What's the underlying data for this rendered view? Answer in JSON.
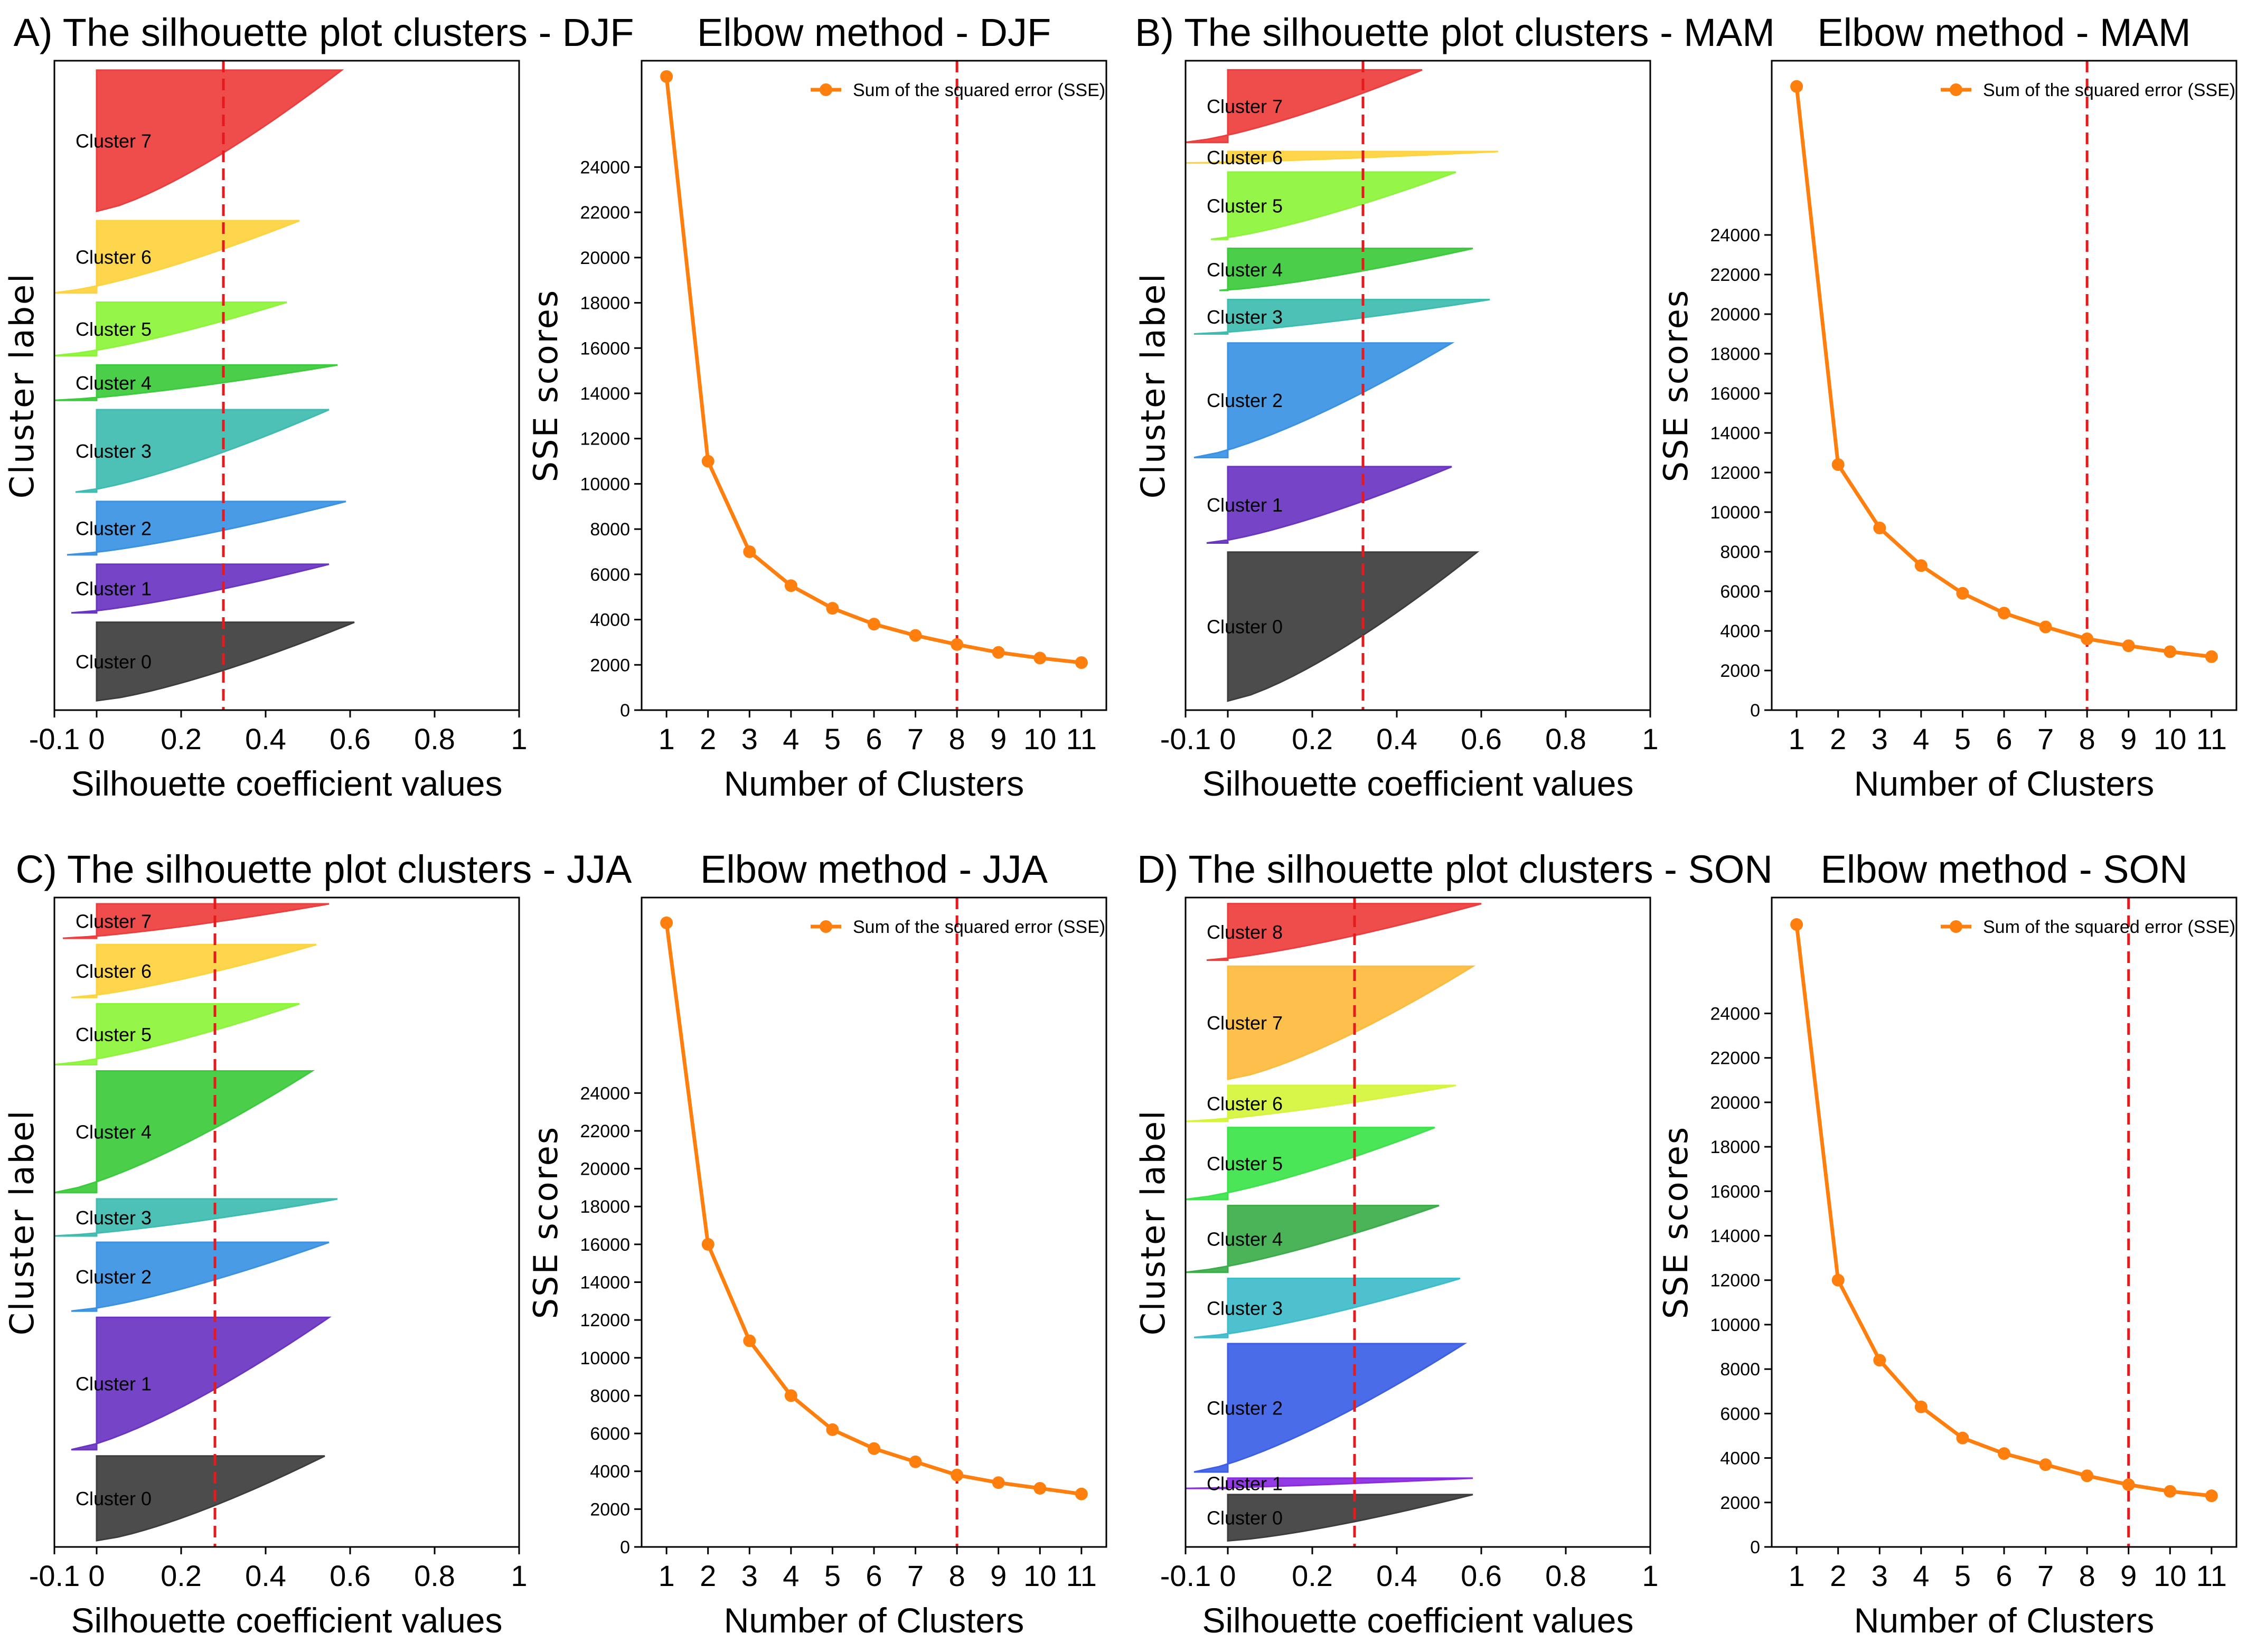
{
  "chart_data": [
    {
      "type": "area",
      "kind": "silhouette",
      "title": "A) The silhouette plot clusters - DJF",
      "xlabel": "Silhouette coefficient values",
      "ylabel": "Cluster label",
      "xlim": [
        -0.1,
        1
      ],
      "xticks": [
        "-0.1",
        "0",
        "0.2",
        "0.4",
        "0.6",
        "0.8",
        "1"
      ],
      "xtick_values": [
        -0.1,
        0,
        0.2,
        0.4,
        0.6,
        0.8,
        1
      ],
      "avg_silhouette": 0.3,
      "clusters": [
        {
          "label": "Cluster 0",
          "size": 1.0,
          "max": 0.61,
          "min": 0.0,
          "color": "#3d3d3d"
        },
        {
          "label": "Cluster 1",
          "size": 0.62,
          "max": 0.55,
          "min": -0.06,
          "color": "#6a35c2"
        },
        {
          "label": "Cluster 2",
          "size": 0.68,
          "max": 0.59,
          "min": -0.07,
          "color": "#3a92e4"
        },
        {
          "label": "Cluster 3",
          "size": 1.05,
          "max": 0.55,
          "min": -0.05,
          "color": "#3fbcb0"
        },
        {
          "label": "Cluster 4",
          "size": 0.45,
          "max": 0.57,
          "min": -0.1,
          "color": "#3ccb3c"
        },
        {
          "label": "Cluster 5",
          "size": 0.68,
          "max": 0.45,
          "min": -0.1,
          "color": "#8cf53a"
        },
        {
          "label": "Cluster 6",
          "size": 0.92,
          "max": 0.48,
          "min": -0.1,
          "color": "#fdd33e"
        },
        {
          "label": "Cluster 7",
          "size": 1.8,
          "max": 0.58,
          "min": 0.0,
          "color": "#ee3d3d"
        }
      ]
    },
    {
      "type": "line",
      "kind": "elbow",
      "title": "Elbow method - DJF",
      "xlabel": "Number of Clusters",
      "ylabel": "SSE scores",
      "legend": "Sum of the squared error (SSE)",
      "x": [
        1,
        2,
        3,
        4,
        5,
        6,
        7,
        8,
        9,
        10,
        11
      ],
      "y": [
        28000,
        11000,
        7000,
        5500,
        4500,
        3800,
        3300,
        2900,
        2550,
        2300,
        2100
      ],
      "ylim": [
        0,
        28000
      ],
      "yticks": [
        0,
        2000,
        4000,
        6000,
        8000,
        10000,
        12000,
        14000,
        16000,
        18000,
        20000,
        22000,
        24000
      ],
      "optimal_k": 8,
      "color": "#ff7f0e"
    },
    {
      "type": "area",
      "kind": "silhouette",
      "title": "B) The silhouette plot clusters - MAM",
      "xlabel": "Silhouette coefficient values",
      "ylabel": "Cluster label",
      "xlim": [
        -0.1,
        1
      ],
      "xticks": [
        "-0.1",
        "0",
        "0.2",
        "0.4",
        "0.6",
        "0.8",
        "1"
      ],
      "xtick_values": [
        -0.1,
        0,
        0.2,
        0.4,
        0.6,
        0.8,
        1
      ],
      "avg_silhouette": 0.32,
      "clusters": [
        {
          "label": "Cluster 0",
          "size": 1.95,
          "max": 0.59,
          "min": 0.0,
          "color": "#3d3d3d"
        },
        {
          "label": "Cluster 1",
          "size": 1.0,
          "max": 0.53,
          "min": -0.05,
          "color": "#6a35c2"
        },
        {
          "label": "Cluster 2",
          "size": 1.5,
          "max": 0.53,
          "min": -0.08,
          "color": "#3a92e4"
        },
        {
          "label": "Cluster 3",
          "size": 0.45,
          "max": 0.62,
          "min": -0.08,
          "color": "#3fbcb0"
        },
        {
          "label": "Cluster 4",
          "size": 0.55,
          "max": 0.58,
          "min": -0.02,
          "color": "#3ccb3c"
        },
        {
          "label": "Cluster 5",
          "size": 0.88,
          "max": 0.54,
          "min": -0.04,
          "color": "#8cf53a"
        },
        {
          "label": "Cluster 6",
          "size": 0.15,
          "max": 0.64,
          "min": -0.1,
          "color": "#fdd33e"
        },
        {
          "label": "Cluster 7",
          "size": 0.95,
          "max": 0.46,
          "min": -0.1,
          "color": "#ee3d3d"
        }
      ]
    },
    {
      "type": "line",
      "kind": "elbow",
      "title": "Elbow method - MAM",
      "xlabel": "Number of Clusters",
      "ylabel": "SSE scores",
      "legend": "Sum of the squared error (SSE)",
      "x": [
        1,
        2,
        3,
        4,
        5,
        6,
        7,
        8,
        9,
        10,
        11
      ],
      "y": [
        31500,
        12400,
        9200,
        7300,
        5900,
        4900,
        4200,
        3600,
        3250,
        2950,
        2700
      ],
      "ylim": [
        0,
        32000
      ],
      "yticks": [
        0,
        2000,
        4000,
        6000,
        8000,
        10000,
        12000,
        14000,
        16000,
        18000,
        20000,
        22000,
        24000
      ],
      "optimal_k": 8,
      "color": "#ff7f0e"
    },
    {
      "type": "area",
      "kind": "silhouette",
      "title": "C) The silhouette plot clusters - JJA",
      "xlabel": "Silhouette coefficient values",
      "ylabel": "Cluster label",
      "xlim": [
        -0.1,
        1
      ],
      "xticks": [
        "-0.1",
        "0",
        "0.2",
        "0.4",
        "0.6",
        "0.8",
        "1"
      ],
      "xtick_values": [
        -0.1,
        0,
        0.2,
        0.4,
        0.6,
        0.8,
        1
      ],
      "avg_silhouette": 0.28,
      "clusters": [
        {
          "label": "Cluster 0",
          "size": 1.6,
          "max": 0.54,
          "min": 0.0,
          "color": "#3d3d3d"
        },
        {
          "label": "Cluster 1",
          "size": 2.5,
          "max": 0.55,
          "min": -0.06,
          "color": "#6a35c2"
        },
        {
          "label": "Cluster 2",
          "size": 1.3,
          "max": 0.55,
          "min": -0.06,
          "color": "#3a92e4"
        },
        {
          "label": "Cluster 3",
          "size": 0.7,
          "max": 0.57,
          "min": -0.1,
          "color": "#3fbcb0"
        },
        {
          "label": "Cluster 4",
          "size": 2.3,
          "max": 0.51,
          "min": -0.1,
          "color": "#3ccb3c"
        },
        {
          "label": "Cluster 5",
          "size": 1.15,
          "max": 0.48,
          "min": -0.1,
          "color": "#8cf53a"
        },
        {
          "label": "Cluster 6",
          "size": 1.0,
          "max": 0.52,
          "min": -0.06,
          "color": "#fdd33e"
        },
        {
          "label": "Cluster 7",
          "size": 0.65,
          "max": 0.55,
          "min": -0.08,
          "color": "#ee3d3d"
        }
      ]
    },
    {
      "type": "line",
      "kind": "elbow",
      "title": "Elbow method - JJA",
      "xlabel": "Number of Clusters",
      "ylabel": "SSE scores",
      "legend": "Sum of the squared error (SSE)",
      "x": [
        1,
        2,
        3,
        4,
        5,
        6,
        7,
        8,
        9,
        10,
        11
      ],
      "y": [
        33000,
        16000,
        10900,
        8000,
        6200,
        5200,
        4500,
        3800,
        3400,
        3100,
        2800
      ],
      "ylim": [
        0,
        33500
      ],
      "yticks": [
        0,
        2000,
        4000,
        6000,
        8000,
        10000,
        12000,
        14000,
        16000,
        18000,
        20000,
        22000,
        24000
      ],
      "optimal_k": 8,
      "color": "#ff7f0e"
    },
    {
      "type": "area",
      "kind": "silhouette",
      "title": "D) The silhouette plot clusters - SON",
      "xlabel": "Silhouette coefficient values",
      "ylabel": "Cluster label",
      "xlim": [
        -0.1,
        1
      ],
      "xticks": [
        "-0.1",
        "0",
        "0.2",
        "0.4",
        "0.6",
        "0.8",
        "1"
      ],
      "xtick_values": [
        -0.1,
        0,
        0.2,
        0.4,
        0.6,
        0.8,
        1
      ],
      "avg_silhouette": 0.3,
      "clusters": [
        {
          "label": "Cluster 0",
          "size": 0.9,
          "max": 0.58,
          "min": 0.0,
          "color": "#3d3d3d"
        },
        {
          "label": "Cluster 1",
          "size": 0.2,
          "max": 0.58,
          "min": -0.1,
          "color": "#8a2be2"
        },
        {
          "label": "Cluster 2",
          "size": 2.5,
          "max": 0.56,
          "min": -0.08,
          "color": "#3c5fe6"
        },
        {
          "label": "Cluster 3",
          "size": 1.15,
          "max": 0.55,
          "min": -0.08,
          "color": "#3fbccb"
        },
        {
          "label": "Cluster 4",
          "size": 1.3,
          "max": 0.5,
          "min": -0.1,
          "color": "#3cad4a"
        },
        {
          "label": "Cluster 5",
          "size": 1.4,
          "max": 0.49,
          "min": -0.1,
          "color": "#3ce44a"
        },
        {
          "label": "Cluster 6",
          "size": 0.7,
          "max": 0.54,
          "min": -0.1,
          "color": "#d4f53a"
        },
        {
          "label": "Cluster 7",
          "size": 2.2,
          "max": 0.58,
          "min": 0.0,
          "color": "#fdbb3e"
        },
        {
          "label": "Cluster 8",
          "size": 1.1,
          "max": 0.6,
          "min": -0.05,
          "color": "#ee3d3d"
        }
      ]
    },
    {
      "type": "line",
      "kind": "elbow",
      "title": "Elbow method - SON",
      "xlabel": "Number of Clusters",
      "ylabel": "SSE scores",
      "legend": "Sum of the squared error (SSE)",
      "x": [
        1,
        2,
        3,
        4,
        5,
        6,
        7,
        8,
        9,
        10,
        11
      ],
      "y": [
        28000,
        12000,
        8400,
        6300,
        4900,
        4200,
        3700,
        3200,
        2800,
        2500,
        2300
      ],
      "ylim": [
        0,
        28500
      ],
      "yticks": [
        0,
        2000,
        4000,
        6000,
        8000,
        10000,
        12000,
        14000,
        16000,
        18000,
        20000,
        22000,
        24000
      ],
      "optimal_k": 9,
      "color": "#ff7f0e"
    }
  ]
}
